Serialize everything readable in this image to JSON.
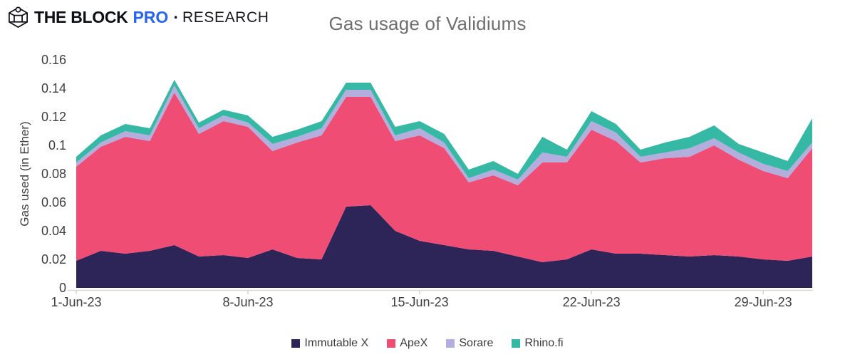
{
  "header": {
    "logo_primary": "THE BLOCK",
    "logo_pro": "PRO",
    "logo_separator": "·",
    "logo_secondary": "RESEARCH"
  },
  "chart_data": {
    "type": "area",
    "stacked": true,
    "title": "Gas usage of Validiums",
    "xlabel": "",
    "ylabel": "Gas used (in Ether)",
    "ylim": [
      0,
      0.16
    ],
    "grid": false,
    "legend_position": "bottom",
    "ytick_values": [
      0,
      0.02,
      0.04,
      0.06,
      0.08,
      0.1,
      0.12,
      0.14,
      0.16
    ],
    "ytick_labels": [
      "0",
      "0.02",
      "0.04",
      "0.06",
      "0.08",
      "0.1",
      "0.12",
      "0.14",
      "0.16"
    ],
    "xticks": [
      {
        "index": 0,
        "label": "1-Jun-23"
      },
      {
        "index": 7,
        "label": "8-Jun-23"
      },
      {
        "index": 14,
        "label": "15-Jun-23"
      },
      {
        "index": 21,
        "label": "22-Jun-23"
      },
      {
        "index": 28,
        "label": "29-Jun-23"
      }
    ],
    "x_dates": [
      "1-Jun-23",
      "2-Jun-23",
      "3-Jun-23",
      "4-Jun-23",
      "5-Jun-23",
      "6-Jun-23",
      "7-Jun-23",
      "8-Jun-23",
      "9-Jun-23",
      "10-Jun-23",
      "11-Jun-23",
      "12-Jun-23",
      "13-Jun-23",
      "14-Jun-23",
      "15-Jun-23",
      "16-Jun-23",
      "17-Jun-23",
      "18-Jun-23",
      "19-Jun-23",
      "20-Jun-23",
      "21-Jun-23",
      "22-Jun-23",
      "23-Jun-23",
      "24-Jun-23",
      "25-Jun-23",
      "26-Jun-23",
      "27-Jun-23",
      "28-Jun-23",
      "29-Jun-23",
      "30-Jun-23",
      "1-Jul-23"
    ],
    "series": [
      {
        "name": "Immutable X",
        "color": "#2d2457",
        "values": [
          0.019,
          0.026,
          0.024,
          0.026,
          0.03,
          0.022,
          0.023,
          0.021,
          0.027,
          0.021,
          0.02,
          0.057,
          0.058,
          0.04,
          0.033,
          0.03,
          0.027,
          0.026,
          0.022,
          0.018,
          0.02,
          0.027,
          0.024,
          0.024,
          0.023,
          0.022,
          0.023,
          0.022,
          0.02,
          0.019,
          0.022
        ]
      },
      {
        "name": "ApeX",
        "color": "#f04d75",
        "values": [
          0.066,
          0.073,
          0.082,
          0.077,
          0.107,
          0.086,
          0.094,
          0.092,
          0.069,
          0.081,
          0.087,
          0.077,
          0.076,
          0.063,
          0.074,
          0.068,
          0.047,
          0.053,
          0.05,
          0.07,
          0.068,
          0.084,
          0.079,
          0.064,
          0.068,
          0.07,
          0.077,
          0.068,
          0.062,
          0.058,
          0.076
        ]
      },
      {
        "name": "Sorare",
        "color": "#b4aede",
        "values": [
          0.003,
          0.003,
          0.004,
          0.004,
          0.005,
          0.004,
          0.004,
          0.003,
          0.005,
          0.004,
          0.005,
          0.005,
          0.005,
          0.004,
          0.005,
          0.004,
          0.003,
          0.004,
          0.004,
          0.007,
          0.004,
          0.006,
          0.006,
          0.004,
          0.004,
          0.006,
          0.005,
          0.005,
          0.005,
          0.005,
          0.004
        ]
      },
      {
        "name": "Rhino.fi",
        "color": "#35b9a4",
        "values": [
          0.004,
          0.005,
          0.005,
          0.005,
          0.004,
          0.004,
          0.004,
          0.005,
          0.005,
          0.005,
          0.005,
          0.005,
          0.005,
          0.006,
          0.005,
          0.006,
          0.006,
          0.006,
          0.004,
          0.011,
          0.005,
          0.007,
          0.006,
          0.005,
          0.007,
          0.008,
          0.009,
          0.006,
          0.008,
          0.007,
          0.017
        ]
      }
    ]
  },
  "colors": {
    "axis_line": "#d9d9d9",
    "tick_mark": "#c9c9c9",
    "axis_text": "#3f3f3f",
    "title_gray": "#6e6e6e"
  }
}
